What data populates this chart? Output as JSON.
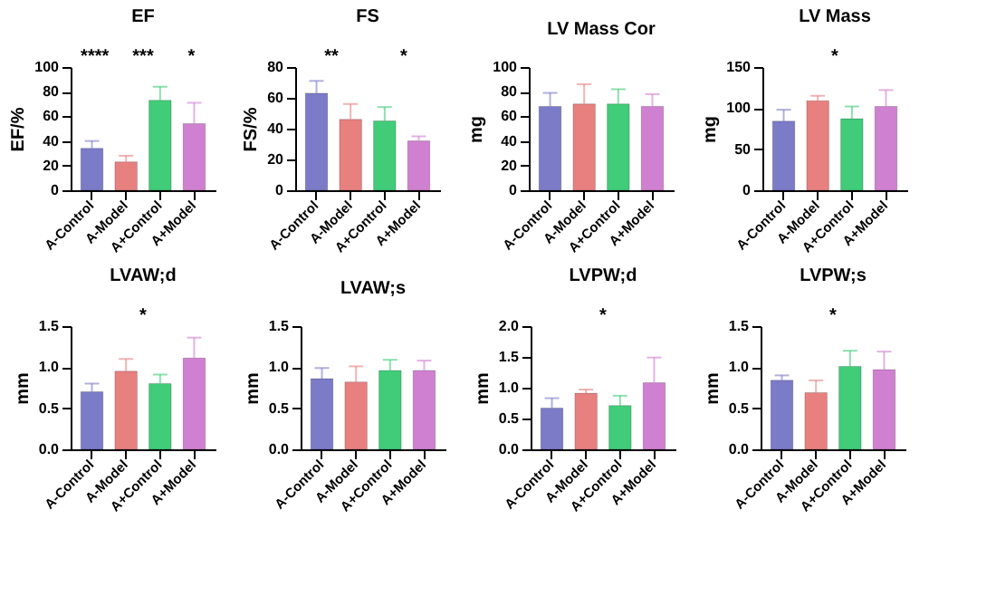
{
  "chart_data": [
    {
      "type": "bar",
      "title": "EF",
      "ylabel": "EF/%",
      "categories": [
        "A-Control",
        "A-Model",
        "A+Control",
        "A+Model"
      ],
      "values": [
        34,
        23,
        73,
        54
      ],
      "errors": [
        [
          34,
          40
        ],
        [
          23,
          28
        ],
        [
          73,
          84
        ],
        [
          54,
          71
        ]
      ],
      "colors": [
        "#7b7bc8",
        "#e88080",
        "#40cc78",
        "#d080d0"
      ],
      "ylim": [
        0,
        100
      ],
      "yticks": [
        0,
        20,
        40,
        60,
        80,
        100
      ],
      "annotations": [
        "****",
        "***",
        "*"
      ]
    },
    {
      "type": "bar",
      "title": "FS",
      "ylabel": "FS/%",
      "categories": [
        "A-Control",
        "A-Model",
        "A+Control",
        "A+Model"
      ],
      "values": [
        63,
        46,
        45,
        32
      ],
      "errors": [
        [
          63,
          71
        ],
        [
          46,
          56
        ],
        [
          45,
          54
        ],
        [
          32,
          35
        ]
      ],
      "colors": [
        "#7b7bc8",
        "#e88080",
        "#40cc78",
        "#d080d0"
      ],
      "ylim": [
        0,
        80
      ],
      "yticks": [
        0,
        20,
        40,
        60,
        80
      ],
      "annotations": [
        "**",
        "*"
      ]
    },
    {
      "type": "bar",
      "title": "LV Mass Cor",
      "ylabel": "mg",
      "categories": [
        "A-Control",
        "A-Model",
        "A+Control",
        "A+Model"
      ],
      "values": [
        68,
        70,
        70,
        68
      ],
      "errors": [
        [
          68,
          79
        ],
        [
          70,
          86
        ],
        [
          70,
          82
        ],
        [
          68,
          78
        ]
      ],
      "colors": [
        "#7b7bc8",
        "#e88080",
        "#40cc78",
        "#d080d0"
      ],
      "ylim": [
        0,
        100
      ],
      "yticks": [
        0,
        20,
        40,
        60,
        80,
        100
      ]
    },
    {
      "type": "bar",
      "title": "LV Mass",
      "ylabel": "mg",
      "categories": [
        "A-Control",
        "A-Model",
        "A+Control",
        "A+Model"
      ],
      "values": [
        84,
        109,
        87,
        102
      ],
      "errors": [
        [
          84,
          98
        ],
        [
          109,
          115
        ],
        [
          87,
          102
        ],
        [
          102,
          122
        ]
      ],
      "colors": [
        "#7b7bc8",
        "#e88080",
        "#40cc78",
        "#d080d0"
      ],
      "ylim": [
        0,
        150
      ],
      "yticks": [
        0,
        50,
        100,
        150
      ],
      "annotations": [
        "*"
      ]
    },
    {
      "type": "bar",
      "title": "LVAW;d",
      "ylabel": "mm",
      "categories": [
        "A-Control",
        "A-Model",
        "A+Control",
        "A+Model"
      ],
      "values": [
        0.7,
        0.95,
        0.8,
        1.11
      ],
      "errors": [
        [
          0.7,
          0.8
        ],
        [
          0.95,
          1.1
        ],
        [
          0.8,
          0.91
        ],
        [
          1.11,
          1.36
        ]
      ],
      "colors": [
        "#7b7bc8",
        "#e88080",
        "#40cc78",
        "#d080d0"
      ],
      "ylim": [
        0,
        1.5
      ],
      "yticks": [
        {
          "value": 0,
          "label": "0.0"
        },
        0.5,
        {
          "value": 1,
          "label": "1.0"
        },
        1.5
      ],
      "annotations": [
        "*"
      ]
    },
    {
      "type": "bar",
      "title": "LVAW;s",
      "ylabel": "mm",
      "categories": [
        "A-Control",
        "A-Model",
        "A+Control",
        "A+Model"
      ],
      "values": [
        0.86,
        0.82,
        0.96,
        0.96
      ],
      "errors": [
        [
          0.86,
          0.99
        ],
        [
          0.82,
          1.01
        ],
        [
          0.96,
          1.09
        ],
        [
          0.96,
          1.08
        ]
      ],
      "colors": [
        "#7b7bc8",
        "#e88080",
        "#40cc78",
        "#d080d0"
      ],
      "ylim": [
        0,
        1.5
      ],
      "yticks": [
        {
          "value": 0,
          "label": "0.0"
        },
        0.5,
        {
          "value": 1,
          "label": "1.0"
        },
        1.5
      ]
    },
    {
      "type": "bar",
      "title": "LVPW;d",
      "ylabel": "mm",
      "categories": [
        "A-Control",
        "A-Model",
        "A+Control",
        "A+Model"
      ],
      "values": [
        0.67,
        0.91,
        0.71,
        1.08
      ],
      "errors": [
        [
          0.67,
          0.83
        ],
        [
          0.91,
          0.97
        ],
        [
          0.71,
          0.87
        ],
        [
          1.08,
          1.49
        ]
      ],
      "colors": [
        "#7b7bc8",
        "#e88080",
        "#40cc78",
        "#d080d0"
      ],
      "ylim": [
        0,
        2
      ],
      "yticks": [
        {
          "value": 0,
          "label": "0.0"
        },
        0.5,
        {
          "value": 1,
          "label": "1.0"
        },
        1.5,
        {
          "value": 2,
          "label": "2.0"
        }
      ],
      "annotations": [
        "*"
      ]
    },
    {
      "type": "bar",
      "title": "LVPW;s",
      "ylabel": "mm",
      "categories": [
        "A-Control",
        "A-Model",
        "A+Control",
        "A+Model"
      ],
      "values": [
        0.84,
        0.69,
        1.01,
        0.97
      ],
      "errors": [
        [
          0.84,
          0.9
        ],
        [
          0.69,
          0.84
        ],
        [
          1.01,
          1.2
        ],
        [
          0.97,
          1.19
        ]
      ],
      "colors": [
        "#7b7bc8",
        "#e88080",
        "#40cc78",
        "#d080d0"
      ],
      "ylim": [
        0,
        1.5
      ],
      "yticks": [
        {
          "value": 0,
          "label": "0.0"
        },
        0.5,
        {
          "value": 1,
          "label": "1.0"
        },
        1.5
      ],
      "annotations": [
        "*"
      ]
    }
  ]
}
